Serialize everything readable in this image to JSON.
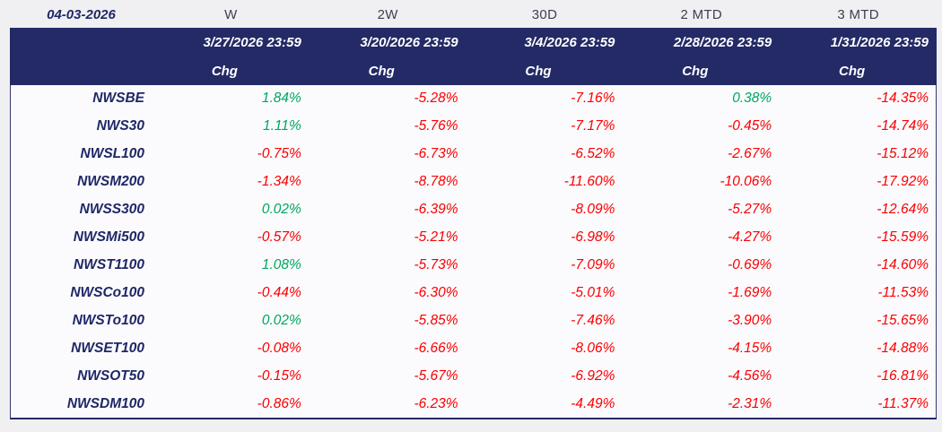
{
  "report": {
    "as_of_date": "04-03-2026",
    "columns": [
      {
        "period": "W",
        "as_of": "3/27/2026 23:59",
        "measure": "Chg"
      },
      {
        "period": "2W",
        "as_of": "3/20/2026 23:59",
        "measure": "Chg"
      },
      {
        "period": "30D",
        "as_of": "3/4/2026 23:59",
        "measure": "Chg"
      },
      {
        "period": "2 MTD",
        "as_of": "2/28/2026 23:59",
        "measure": "Chg"
      },
      {
        "period": "3 MTD",
        "as_of": "1/31/2026 23:59",
        "measure": "Chg"
      }
    ],
    "rows": [
      {
        "index": "NWSBE",
        "changes": [
          "1.84%",
          "-5.28%",
          "-7.16%",
          "0.38%",
          "-14.35%"
        ]
      },
      {
        "index": "NWS30",
        "changes": [
          "1.11%",
          "-5.76%",
          "-7.17%",
          "-0.45%",
          "-14.74%"
        ]
      },
      {
        "index": "NWSL100",
        "changes": [
          "-0.75%",
          "-6.73%",
          "-6.52%",
          "-2.67%",
          "-15.12%"
        ]
      },
      {
        "index": "NWSM200",
        "changes": [
          "-1.34%",
          "-8.78%",
          "-11.60%",
          "-10.06%",
          "-17.92%"
        ]
      },
      {
        "index": "NWSS300",
        "changes": [
          "0.02%",
          "-6.39%",
          "-8.09%",
          "-5.27%",
          "-12.64%"
        ]
      },
      {
        "index": "NWSMi500",
        "changes": [
          "-0.57%",
          "-5.21%",
          "-6.98%",
          "-4.27%",
          "-15.59%"
        ]
      },
      {
        "index": "NWST1100",
        "changes": [
          "1.08%",
          "-5.73%",
          "-7.09%",
          "-0.69%",
          "-14.60%"
        ]
      },
      {
        "index": "NWSCo100",
        "changes": [
          "-0.44%",
          "-6.30%",
          "-5.01%",
          "-1.69%",
          "-11.53%"
        ]
      },
      {
        "index": "NWSTo100",
        "changes": [
          "0.02%",
          "-5.85%",
          "-7.46%",
          "-3.90%",
          "-15.65%"
        ]
      },
      {
        "index": "NWSET100",
        "changes": [
          "-0.08%",
          "-6.66%",
          "-8.06%",
          "-4.15%",
          "-14.88%"
        ]
      },
      {
        "index": "NWSOT50",
        "changes": [
          "-0.15%",
          "-5.67%",
          "-6.92%",
          "-4.56%",
          "-16.81%"
        ]
      },
      {
        "index": "NWSDM100",
        "changes": [
          "-0.86%",
          "-6.23%",
          "-4.49%",
          "-2.31%",
          "-11.37%"
        ]
      }
    ],
    "colors": {
      "positive": "#00A85E",
      "negative": "#FA0000",
      "header_bg": "#232A66",
      "header_text": "#FFFFFF",
      "index_text": "#1F2766",
      "period_text": "#3C3F50",
      "body_bg": "#FBFBFE",
      "page_bg": "#F0F0F2"
    }
  }
}
